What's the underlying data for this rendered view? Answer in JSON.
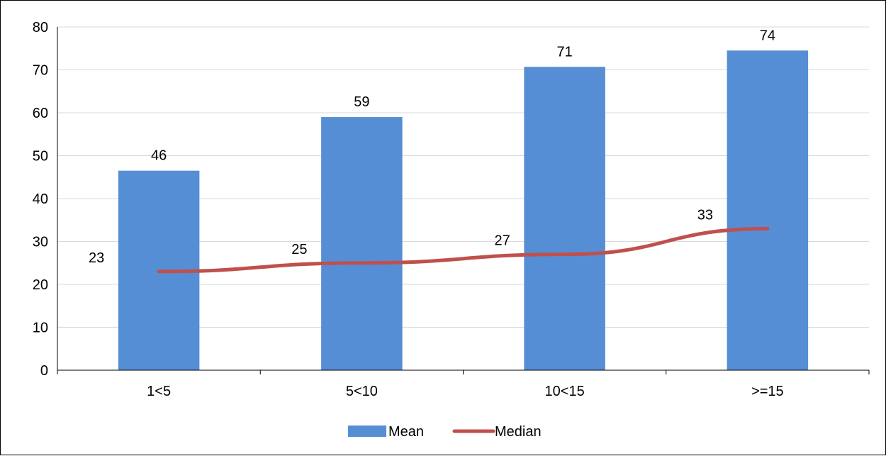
{
  "chart_data": {
    "type": "bar",
    "categories": [
      "1<5",
      "5<10",
      "10<15",
      ">=15"
    ],
    "series": [
      {
        "name": "Mean",
        "type": "bar",
        "values": [
          46.5,
          59,
          70.7,
          74.5
        ],
        "labels": [
          "46",
          "59",
          "71",
          "74"
        ],
        "color": "#558ED5"
      },
      {
        "name": "Median",
        "type": "line",
        "values": [
          23,
          25,
          27,
          33
        ],
        "labels": [
          "23",
          "25",
          "27",
          "33"
        ],
        "color": "#C0504D"
      }
    ],
    "ylim": [
      0,
      80
    ],
    "yticks": [
      0,
      10,
      20,
      30,
      40,
      50,
      60,
      70,
      80
    ],
    "grid": true,
    "legend": "bottom"
  }
}
